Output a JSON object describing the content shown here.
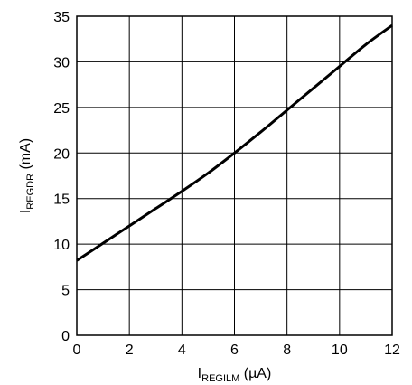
{
  "chart_data": {
    "type": "line",
    "x_axis": {
      "label": {
        "main": "I",
        "sub": "REGILM",
        "unit": " (µA)"
      },
      "range": [
        0,
        12
      ],
      "ticks": [
        0,
        2,
        4,
        6,
        8,
        10,
        12
      ]
    },
    "y_axis": {
      "label": {
        "main": "I",
        "sub": "REGDR",
        "unit": " (mA)"
      },
      "range": [
        0,
        35
      ],
      "ticks": [
        0,
        5,
        10,
        15,
        20,
        25,
        30,
        35
      ]
    },
    "grid": true,
    "series": [
      {
        "color": "#000000",
        "x": [
          0,
          1,
          2,
          3,
          4,
          5,
          6,
          7,
          8,
          9,
          10,
          11,
          12
        ],
        "y": [
          8.2,
          10.1,
          12.0,
          13.9,
          15.8,
          17.8,
          20.0,
          22.3,
          24.7,
          27.1,
          29.5,
          31.9,
          34.0
        ]
      }
    ]
  }
}
